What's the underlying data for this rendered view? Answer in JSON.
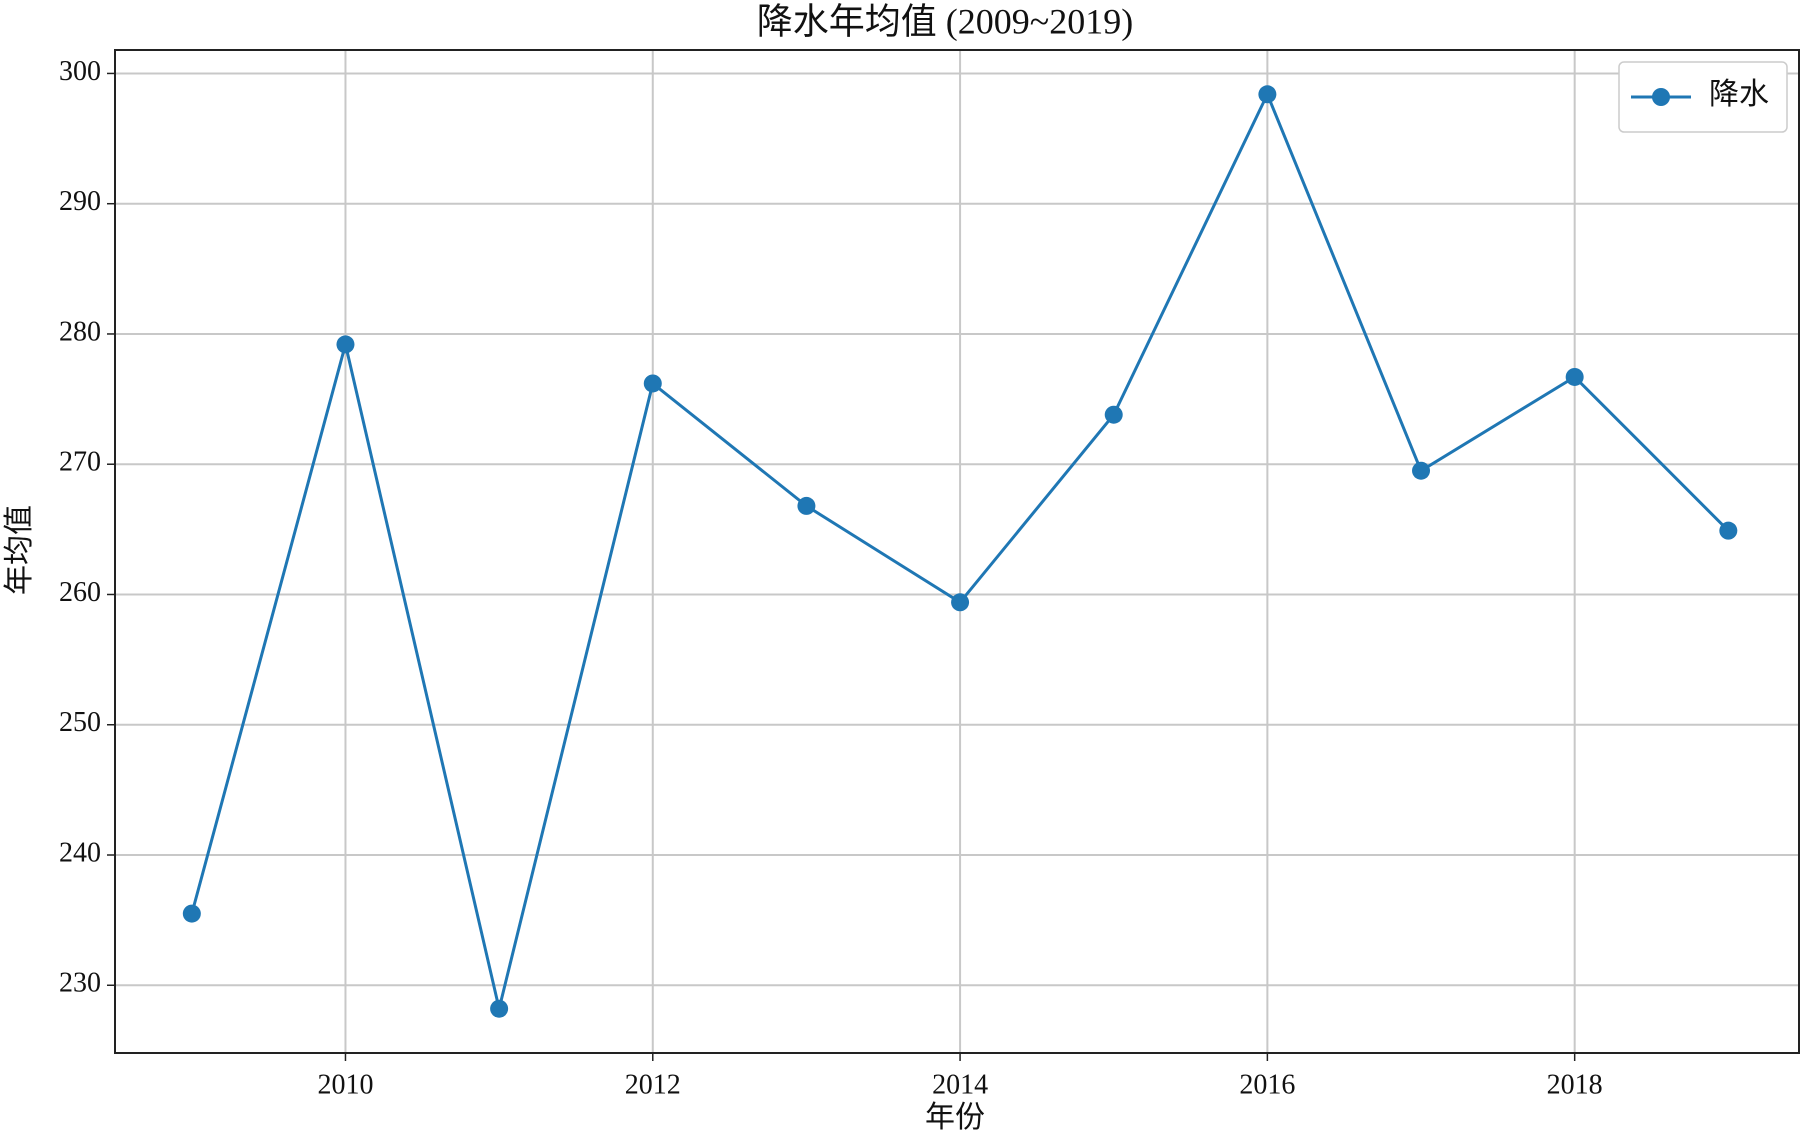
{
  "chart_data": {
    "type": "line",
    "title": "降水年均值 (2009~2019)",
    "x_label": "年份",
    "y_label": "年均值",
    "x": [
      2009,
      2010,
      2011,
      2012,
      2013,
      2014,
      2015,
      2016,
      2017,
      2018,
      2019
    ],
    "series": [
      {
        "name": "降水",
        "color": "#1f77b4",
        "values": [
          235.5,
          279.2,
          228.2,
          276.2,
          266.8,
          259.4,
          273.8,
          298.4,
          269.5,
          276.7,
          264.9
        ]
      }
    ],
    "xlim": [
      2008.5,
      2019.46
    ],
    "xticks": [
      2010,
      2012,
      2014,
      2016,
      2018
    ],
    "ylim": [
      224.8,
      301.8
    ],
    "yticks": [
      230,
      240,
      250,
      260,
      270,
      280,
      290,
      300
    ],
    "grid": true,
    "legend": "upper right"
  }
}
